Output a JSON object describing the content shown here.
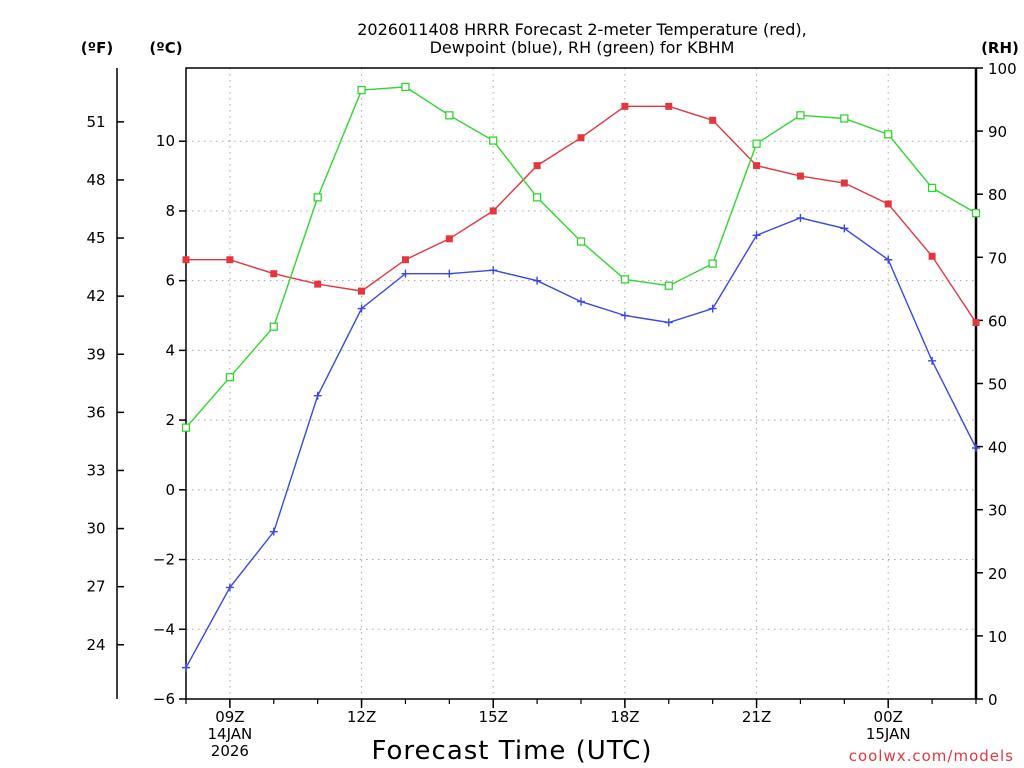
{
  "chart_data": {
    "type": "line",
    "title_lines": [
      "2026011408 HRRR Forecast 2-meter Temperature (red),",
      "Dewpoint (blue), RH (green) for KBHM"
    ],
    "left_axis_label": "(ºC)",
    "far_left_axis_label": "(ºF)",
    "right_axis_label": "(RH)",
    "xlabel": "Forecast Time (UTC)",
    "credit": "coolwx.com/models",
    "x_hours": [
      8,
      9,
      10,
      11,
      12,
      13,
      14,
      15,
      16,
      17,
      18,
      19,
      20,
      21,
      22,
      23,
      24,
      25,
      26
    ],
    "xlim": [
      8,
      26
    ],
    "x_ticks": [
      {
        "hour": 9,
        "lines": [
          "09Z",
          "14JAN",
          "2026"
        ]
      },
      {
        "hour": 12,
        "lines": [
          "12Z"
        ]
      },
      {
        "hour": 15,
        "lines": [
          "15Z"
        ]
      },
      {
        "hour": 18,
        "lines": [
          "18Z"
        ]
      },
      {
        "hour": 21,
        "lines": [
          "21Z"
        ]
      },
      {
        "hour": 24,
        "lines": [
          "00Z",
          "15JAN"
        ]
      }
    ],
    "celsius_axis": {
      "ylim": [
        -6,
        12.1
      ],
      "ticks": [
        -6,
        -4,
        -2,
        0,
        2,
        4,
        6,
        8,
        10
      ]
    },
    "fahrenheit_axis": {
      "ticks": [
        24,
        27,
        30,
        33,
        36,
        39,
        42,
        45,
        48,
        51
      ]
    },
    "rh_axis": {
      "ylim": [
        0,
        100
      ],
      "ticks": [
        0,
        10,
        20,
        30,
        40,
        50,
        60,
        70,
        80,
        90,
        100
      ]
    },
    "series": [
      {
        "name": "Temperature",
        "axis": "celsius",
        "color": "#e4363f",
        "marker": "filled-square",
        "values": [
          6.6,
          6.6,
          6.2,
          5.9,
          5.7,
          6.6,
          7.2,
          8.0,
          9.3,
          10.1,
          11.0,
          11.0,
          10.6,
          9.3,
          9.0,
          8.8,
          8.2,
          6.7,
          4.8
        ]
      },
      {
        "name": "Dewpoint",
        "axis": "celsius",
        "color": "#3a49e4",
        "marker": "plus",
        "values": [
          -5.1,
          -2.8,
          -1.2,
          2.7,
          5.2,
          6.2,
          6.2,
          6.3,
          6.0,
          5.4,
          5.0,
          4.8,
          5.2,
          7.3,
          7.8,
          7.5,
          6.6,
          3.7,
          1.2
        ]
      },
      {
        "name": "RH",
        "axis": "rh",
        "color": "#31d631",
        "marker": "open-square",
        "values": [
          43,
          51,
          59,
          79.5,
          96.5,
          97,
          92.5,
          88.5,
          79.5,
          72.5,
          66.5,
          65.5,
          69,
          88,
          92.5,
          92,
          89.5,
          81,
          77
        ]
      }
    ],
    "grid": true
  }
}
